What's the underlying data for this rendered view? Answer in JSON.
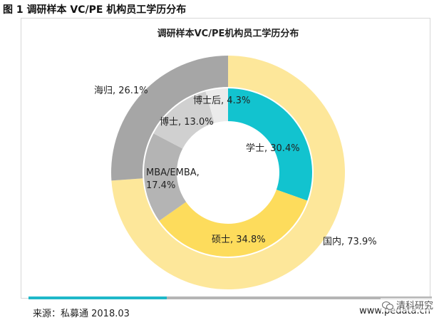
{
  "figure_title": "图 1  调研样本 VC/PE 机构员工学历分布",
  "chart_data": [
    {
      "type": "pie",
      "title": "调研样本VC/PE机构员工学历分布",
      "ring": "outer",
      "slices": [
        {
          "label": "国内",
          "value": 73.9,
          "color": "#fde79a",
          "text": "国内, 73.9%"
        },
        {
          "label": "海归",
          "value": 26.1,
          "color": "#a6a6a6",
          "text": "海归, 26.1%"
        }
      ]
    },
    {
      "type": "pie",
      "ring": "inner",
      "slices": [
        {
          "label": "学士",
          "value": 30.4,
          "color": "#12c3cf",
          "text": "学士, 30.4%"
        },
        {
          "label": "硕士",
          "value": 34.8,
          "color": "#fddc5c",
          "text": "硕士, 34.8%"
        },
        {
          "label": "MBA/EMBA",
          "value": 17.4,
          "color": "#b4b4b4",
          "text": "MBA/EMBA,\n17.4%"
        },
        {
          "label": "博士",
          "value": 13.0,
          "color": "#d0d0d0",
          "text": "博士, 13.0%"
        },
        {
          "label": "博士后",
          "value": 4.3,
          "color": "#ebebeb",
          "text": "博士后, 4.3%"
        }
      ]
    }
  ],
  "footer": {
    "source": "来源：私募通 2018.03",
    "site": "www.pedata.cn",
    "watermark": "清科研究"
  },
  "colors": {
    "accent_bar": "#1fb8c9",
    "base_bar": "#b5b5b5"
  }
}
